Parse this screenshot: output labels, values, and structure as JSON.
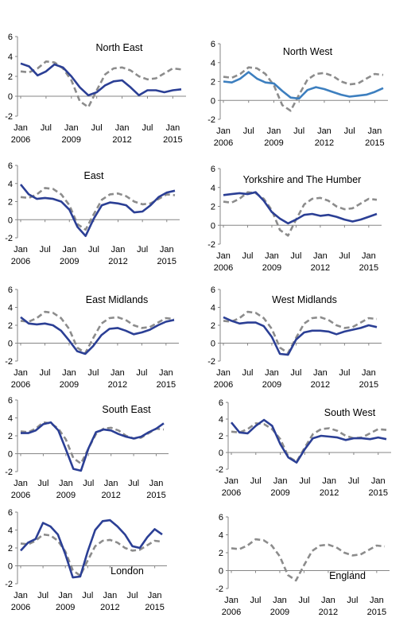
{
  "figure": {
    "series_colors": {
      "region": "#2b3f95",
      "region_alt": "#3d7fbf",
      "england": "#8c8c8c"
    }
  },
  "chart_data": [
    {
      "type": "line",
      "title": "North East",
      "x": [
        "2006-01",
        "2006-07",
        "2007-01",
        "2007-07",
        "2008-01",
        "2008-07",
        "2009-01",
        "2009-07",
        "2010-01",
        "2010-07",
        "2011-01",
        "2011-07",
        "2012-01",
        "2012-07",
        "2013-01",
        "2013-07",
        "2014-01",
        "2014-07",
        "2015-01",
        "2015-07"
      ],
      "xticks": [
        "Jan",
        "Jul",
        "Jan",
        "Jul",
        "Jan",
        "Jul",
        "Jan"
      ],
      "xtick_years": [
        "2006",
        "2009",
        "2012",
        "2015"
      ],
      "yticks": [
        "-2",
        "0",
        "2",
        "4",
        "6"
      ],
      "ylim": [
        -2,
        6
      ],
      "grid": false,
      "series": [
        {
          "key": "region",
          "color": "#2b3f95",
          "values": [
            3.3,
            3.0,
            2.1,
            2.5,
            3.2,
            2.9,
            2.0,
            0.9,
            0.1,
            0.4,
            1.1,
            1.5,
            1.6,
            0.9,
            0.1,
            0.6,
            0.6,
            0.4,
            0.6,
            0.7
          ]
        },
        {
          "key": "england",
          "color": "#8c8c8c",
          "dashed": true,
          "values": [
            2.5,
            2.4,
            2.8,
            3.5,
            3.4,
            2.8,
            1.6,
            -0.5,
            -1.1,
            0.6,
            2.2,
            2.8,
            2.9,
            2.6,
            2.0,
            1.7,
            1.8,
            2.3,
            2.8,
            2.7
          ]
        }
      ]
    },
    {
      "type": "line",
      "title": "North West",
      "x": [
        "2006-01",
        "2006-07",
        "2007-01",
        "2007-07",
        "2008-01",
        "2008-07",
        "2009-01",
        "2009-07",
        "2010-01",
        "2010-07",
        "2011-01",
        "2011-07",
        "2012-01",
        "2012-07",
        "2013-01",
        "2013-07",
        "2014-01",
        "2014-07",
        "2015-01",
        "2015-07"
      ],
      "xticks": [
        "Jan",
        "Jul",
        "Jan",
        "Jul",
        "Jan",
        "Jul",
        "Jan"
      ],
      "xtick_years": [
        "2006",
        "2009",
        "2012",
        "2015"
      ],
      "yticks": [
        "-2",
        "0",
        "2",
        "4",
        "6"
      ],
      "ylim": [
        -2,
        6
      ],
      "grid": false,
      "series": [
        {
          "key": "region",
          "color": "#3d7fbf",
          "values": [
            2.0,
            1.9,
            2.3,
            3.0,
            2.3,
            1.9,
            1.8,
            1.0,
            0.3,
            0.2,
            1.1,
            1.4,
            1.2,
            0.9,
            0.6,
            0.4,
            0.5,
            0.6,
            0.9,
            1.3
          ]
        },
        {
          "key": "england",
          "color": "#8c8c8c",
          "dashed": true,
          "values": [
            2.5,
            2.4,
            2.8,
            3.5,
            3.4,
            2.8,
            1.6,
            -0.5,
            -1.1,
            0.6,
            2.2,
            2.8,
            2.9,
            2.6,
            2.0,
            1.7,
            1.8,
            2.3,
            2.8,
            2.7
          ]
        }
      ]
    },
    {
      "type": "line",
      "title": "East",
      "x": [
        "2006-01",
        "2006-07",
        "2007-01",
        "2007-07",
        "2008-01",
        "2008-07",
        "2009-01",
        "2009-07",
        "2010-01",
        "2010-07",
        "2011-01",
        "2011-07",
        "2012-01",
        "2012-07",
        "2013-01",
        "2013-07",
        "2014-01",
        "2014-07",
        "2015-01",
        "2015-07"
      ],
      "xticks": [
        "Jan",
        "Jul",
        "Jan",
        "Jul",
        "Jan",
        "Jul",
        "Jan"
      ],
      "xtick_years": [
        "2006",
        "2009",
        "2012",
        "2015"
      ],
      "yticks": [
        "-2",
        "0",
        "2",
        "4",
        "6"
      ],
      "ylim": [
        -2,
        6
      ],
      "grid": false,
      "series": [
        {
          "key": "region",
          "color": "#2b3f95",
          "values": [
            3.9,
            2.8,
            2.3,
            2.4,
            2.3,
            2.0,
            1.1,
            -0.8,
            -1.8,
            0.1,
            1.6,
            1.9,
            1.8,
            1.6,
            0.8,
            0.9,
            1.6,
            2.5,
            3.0,
            3.2
          ]
        },
        {
          "key": "england",
          "color": "#8c8c8c",
          "dashed": true,
          "values": [
            2.5,
            2.4,
            2.8,
            3.5,
            3.4,
            2.8,
            1.6,
            -0.5,
            -1.1,
            0.6,
            2.2,
            2.8,
            2.9,
            2.6,
            2.0,
            1.7,
            1.8,
            2.3,
            2.8,
            2.7
          ]
        }
      ]
    },
    {
      "type": "line",
      "title": "Yorkshire and The Humber",
      "x": [
        "2006-01",
        "2006-07",
        "2007-01",
        "2007-07",
        "2008-01",
        "2008-07",
        "2009-01",
        "2009-07",
        "2010-01",
        "2010-07",
        "2011-01",
        "2011-07",
        "2012-01",
        "2012-07",
        "2013-01",
        "2013-07",
        "2014-01",
        "2014-07",
        "2015-01",
        "2015-07"
      ],
      "xticks": [
        "Jan",
        "Jul",
        "Jan",
        "Jul",
        "Jan",
        "Jul",
        "Jan"
      ],
      "xtick_years": [
        "2006",
        "2009",
        "2012",
        "2015"
      ],
      "yticks": [
        "-2",
        "0",
        "2",
        "4",
        "6"
      ],
      "ylim": [
        -2,
        6
      ],
      "grid": false,
      "series": [
        {
          "key": "region",
          "color": "#2b3f95",
          "values": [
            3.2,
            3.3,
            3.4,
            3.3,
            3.5,
            2.6,
            1.4,
            0.7,
            0.2,
            0.6,
            1.1,
            1.2,
            1.0,
            1.1,
            0.9,
            0.6,
            0.4,
            0.6,
            0.9,
            1.2
          ]
        },
        {
          "key": "england",
          "color": "#8c8c8c",
          "dashed": true,
          "values": [
            2.5,
            2.4,
            2.8,
            3.5,
            3.4,
            2.8,
            1.6,
            -0.5,
            -1.1,
            0.6,
            2.2,
            2.8,
            2.9,
            2.6,
            2.0,
            1.7,
            1.8,
            2.3,
            2.8,
            2.7
          ]
        }
      ]
    },
    {
      "type": "line",
      "title": "East Midlands",
      "x": [
        "2006-01",
        "2006-07",
        "2007-01",
        "2007-07",
        "2008-01",
        "2008-07",
        "2009-01",
        "2009-07",
        "2010-01",
        "2010-07",
        "2011-01",
        "2011-07",
        "2012-01",
        "2012-07",
        "2013-01",
        "2013-07",
        "2014-01",
        "2014-07",
        "2015-01",
        "2015-07"
      ],
      "xticks": [
        "Jan",
        "Jul",
        "Jan",
        "Jul",
        "Jan",
        "Jul",
        "Jan"
      ],
      "xtick_years": [
        "2006",
        "2009",
        "2012",
        "2015"
      ],
      "yticks": [
        "-2",
        "0",
        "2",
        "4",
        "6"
      ],
      "ylim": [
        -2,
        6
      ],
      "grid": false,
      "series": [
        {
          "key": "region",
          "color": "#2b3f95",
          "values": [
            2.9,
            2.2,
            2.1,
            2.2,
            2.0,
            1.4,
            0.3,
            -0.9,
            -1.2,
            -0.3,
            0.9,
            1.6,
            1.7,
            1.4,
            1.0,
            1.2,
            1.5,
            2.0,
            2.4,
            2.6
          ]
        },
        {
          "key": "england",
          "color": "#8c8c8c",
          "dashed": true,
          "values": [
            2.5,
            2.4,
            2.8,
            3.5,
            3.4,
            2.8,
            1.6,
            -0.5,
            -1.1,
            0.6,
            2.2,
            2.8,
            2.9,
            2.6,
            2.0,
            1.7,
            1.8,
            2.3,
            2.8,
            2.7
          ]
        }
      ]
    },
    {
      "type": "line",
      "title": "West Midlands",
      "x": [
        "2006-01",
        "2006-07",
        "2007-01",
        "2007-07",
        "2008-01",
        "2008-07",
        "2009-01",
        "2009-07",
        "2010-01",
        "2010-07",
        "2011-01",
        "2011-07",
        "2012-01",
        "2012-07",
        "2013-01",
        "2013-07",
        "2014-01",
        "2014-07",
        "2015-01",
        "2015-07"
      ],
      "xticks": [
        "Jan",
        "Jul",
        "Jan",
        "Jul",
        "Jan",
        "Jul",
        "Jan"
      ],
      "xtick_years": [
        "2006",
        "2009",
        "2012",
        "2015"
      ],
      "yticks": [
        "-2",
        "0",
        "2",
        "4",
        "6"
      ],
      "ylim": [
        -2,
        6
      ],
      "grid": false,
      "series": [
        {
          "key": "region",
          "color": "#2b3f95",
          "values": [
            2.9,
            2.5,
            2.2,
            2.3,
            2.3,
            1.9,
            0.7,
            -1.2,
            -1.3,
            0.4,
            1.2,
            1.4,
            1.4,
            1.3,
            1.0,
            1.3,
            1.5,
            1.7,
            2.0,
            1.8
          ]
        },
        {
          "key": "england",
          "color": "#8c8c8c",
          "dashed": true,
          "values": [
            2.5,
            2.4,
            2.8,
            3.5,
            3.4,
            2.8,
            1.6,
            -0.5,
            -1.1,
            0.6,
            2.2,
            2.8,
            2.9,
            2.6,
            2.0,
            1.7,
            1.8,
            2.3,
            2.8,
            2.7
          ]
        }
      ]
    },
    {
      "type": "line",
      "title": "South East",
      "x": [
        "2006-01",
        "2006-07",
        "2007-01",
        "2007-07",
        "2008-01",
        "2008-07",
        "2009-01",
        "2009-07",
        "2010-01",
        "2010-07",
        "2011-01",
        "2011-07",
        "2012-01",
        "2012-07",
        "2013-01",
        "2013-07",
        "2014-01",
        "2014-07",
        "2015-01",
        "2015-07"
      ],
      "xticks": [
        "Jan",
        "Jul",
        "Jan",
        "Jul",
        "Jan",
        "Jul",
        "Jan"
      ],
      "xtick_years": [
        "2006",
        "2009",
        "2012",
        "2015"
      ],
      "yticks": [
        "-2",
        "0",
        "2",
        "4",
        "6"
      ],
      "ylim": [
        -2,
        6
      ],
      "grid": false,
      "series": [
        {
          "key": "region",
          "color": "#2b3f95",
          "values": [
            2.3,
            2.3,
            2.6,
            3.3,
            3.5,
            2.6,
            0.5,
            -1.7,
            -1.9,
            0.6,
            2.4,
            2.7,
            2.6,
            2.2,
            1.9,
            1.7,
            1.9,
            2.4,
            2.8,
            3.4
          ]
        },
        {
          "key": "england",
          "color": "#8c8c8c",
          "dashed": true,
          "values": [
            2.5,
            2.4,
            2.8,
            3.5,
            3.4,
            2.8,
            1.6,
            -0.5,
            -1.1,
            0.6,
            2.2,
            2.8,
            2.9,
            2.6,
            2.0,
            1.7,
            1.8,
            2.3,
            2.8,
            2.7
          ]
        }
      ]
    },
    {
      "type": "line",
      "title": "South West",
      "x": [
        "2006-01",
        "2006-07",
        "2007-01",
        "2007-07",
        "2008-01",
        "2008-07",
        "2009-01",
        "2009-07",
        "2010-01",
        "2010-07",
        "2011-01",
        "2011-07",
        "2012-01",
        "2012-07",
        "2013-01",
        "2013-07",
        "2014-01",
        "2014-07",
        "2015-01",
        "2015-07"
      ],
      "xticks": [
        "Jan",
        "Jul",
        "Jan",
        "Jul",
        "Jan",
        "Jul",
        "Jan"
      ],
      "xtick_years": [
        "2006",
        "2009",
        "2012",
        "2015"
      ],
      "yticks": [
        "-2",
        "0",
        "2",
        "4",
        "6"
      ],
      "ylim": [
        -2,
        6
      ],
      "grid": false,
      "series": [
        {
          "key": "region",
          "color": "#2b3f95",
          "values": [
            3.6,
            2.4,
            2.3,
            3.2,
            3.9,
            3.2,
            1.0,
            -0.6,
            -1.2,
            0.4,
            1.7,
            2.0,
            1.9,
            1.8,
            1.5,
            1.7,
            1.7,
            1.6,
            1.8,
            1.6
          ]
        },
        {
          "key": "england",
          "color": "#8c8c8c",
          "dashed": true,
          "values": [
            2.5,
            2.4,
            2.8,
            3.5,
            3.4,
            2.8,
            1.6,
            -0.5,
            -1.1,
            0.6,
            2.2,
            2.8,
            2.9,
            2.6,
            2.0,
            1.7,
            1.8,
            2.3,
            2.8,
            2.7
          ]
        }
      ]
    },
    {
      "type": "line",
      "title": "London",
      "x": [
        "2006-01",
        "2006-07",
        "2007-01",
        "2007-07",
        "2008-01",
        "2008-07",
        "2009-01",
        "2009-07",
        "2010-01",
        "2010-07",
        "2011-01",
        "2011-07",
        "2012-01",
        "2012-07",
        "2013-01",
        "2013-07",
        "2014-01",
        "2014-07",
        "2015-01",
        "2015-07"
      ],
      "xticks": [
        "Jan",
        "Jul",
        "Jan",
        "Jul",
        "Jan",
        "Jul",
        "Jan"
      ],
      "xtick_years": [
        "2006",
        "2009",
        "2012",
        "2015"
      ],
      "yticks": [
        "-2",
        "0",
        "2",
        "4",
        "6"
      ],
      "ylim": [
        -2,
        6
      ],
      "grid": false,
      "series": [
        {
          "key": "region",
          "color": "#2b3f95",
          "values": [
            1.7,
            2.6,
            3.0,
            4.8,
            4.4,
            3.5,
            1.3,
            -1.3,
            -1.2,
            1.6,
            4.0,
            5.0,
            5.1,
            4.4,
            3.5,
            2.2,
            2.0,
            3.2,
            4.1,
            3.5
          ]
        },
        {
          "key": "england",
          "color": "#8c8c8c",
          "dashed": true,
          "values": [
            2.5,
            2.4,
            2.8,
            3.5,
            3.4,
            2.8,
            1.6,
            -0.5,
            -1.1,
            0.6,
            2.2,
            2.8,
            2.9,
            2.6,
            2.0,
            1.7,
            1.8,
            2.3,
            2.8,
            2.7
          ]
        }
      ]
    },
    {
      "type": "line",
      "title": "England",
      "x": [
        "2006-01",
        "2006-07",
        "2007-01",
        "2007-07",
        "2008-01",
        "2008-07",
        "2009-01",
        "2009-07",
        "2010-01",
        "2010-07",
        "2011-01",
        "2011-07",
        "2012-01",
        "2012-07",
        "2013-01",
        "2013-07",
        "2014-01",
        "2014-07",
        "2015-01",
        "2015-07"
      ],
      "xticks": [
        "Jan",
        "Jul",
        "Jan",
        "Jul",
        "Jan",
        "Jul",
        "Jan"
      ],
      "xtick_years": [
        "2006",
        "2009",
        "2012",
        "2015"
      ],
      "yticks": [
        "-2",
        "0",
        "2",
        "4",
        "6"
      ],
      "ylim": [
        -2,
        6
      ],
      "grid": false,
      "series": [
        {
          "key": "england",
          "color": "#8c8c8c",
          "dashed": true,
          "values": [
            2.5,
            2.4,
            2.8,
            3.5,
            3.4,
            2.8,
            1.6,
            -0.5,
            -1.1,
            0.6,
            2.2,
            2.8,
            2.9,
            2.6,
            2.0,
            1.7,
            1.8,
            2.3,
            2.8,
            2.7
          ]
        }
      ]
    }
  ]
}
